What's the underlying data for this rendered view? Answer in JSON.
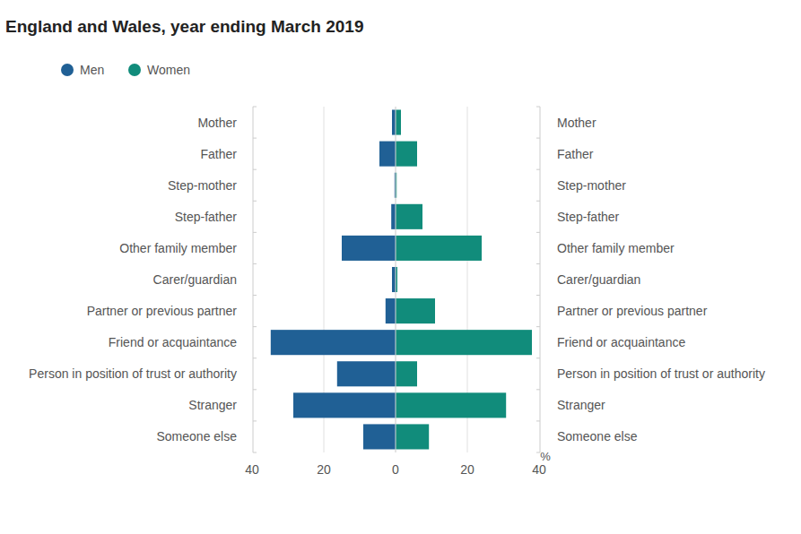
{
  "chart_data": {
    "type": "butterfly",
    "orientation": "horizontal",
    "title": "England and Wales, year ending March 2019",
    "xlabel": "%",
    "categories": [
      "Mother",
      "Father",
      "Step-mother",
      "Step-father",
      "Other family member",
      "Carer/guardian",
      "Partner or previous partner",
      "Friend or acquaintance",
      "Person in position of trust or authority",
      "Stranger",
      "Someone else"
    ],
    "series": [
      {
        "name": "Men",
        "color": "#206095",
        "values": [
          1.0,
          4.5,
          0.3,
          1.2,
          15.0,
          1.0,
          2.8,
          34.8,
          16.3,
          28.5,
          9.0
        ]
      },
      {
        "name": "Women",
        "color": "#118c7b",
        "values": [
          1.5,
          6.0,
          0.3,
          7.5,
          24.0,
          0.5,
          11.0,
          38.0,
          6.0,
          30.8,
          9.3
        ]
      }
    ],
    "xlim": [
      0,
      40
    ],
    "xticks": [
      0,
      20,
      40
    ],
    "grid": true,
    "legend": "top-left"
  }
}
